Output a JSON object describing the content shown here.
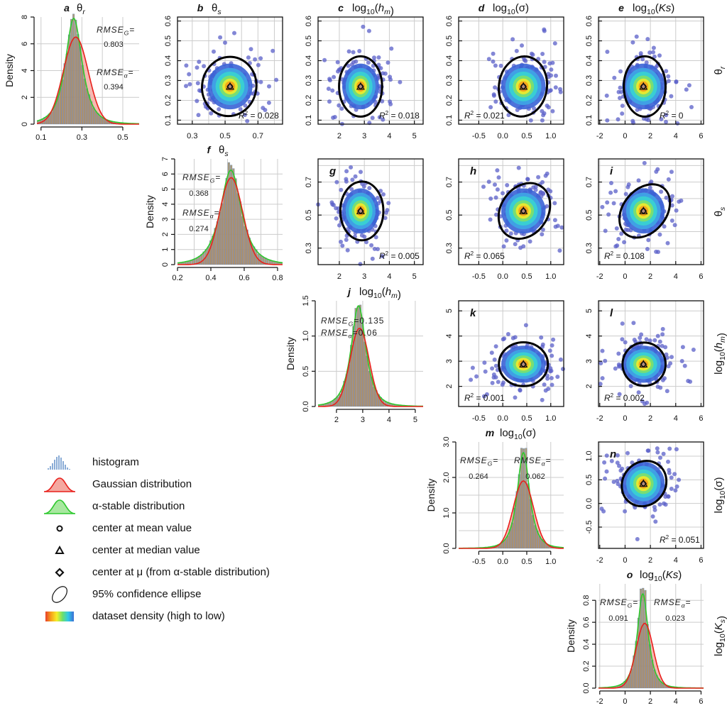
{
  "figure": {
    "description": "Pairwise scatter matrix with marginal histograms of soil hydraulic parameters",
    "row_labels": [
      "θ_r",
      "θ_s",
      "log10(h_m)",
      "log10(σ)",
      "log10(K_s)"
    ],
    "density_axis_label": "Density"
  },
  "legend": {
    "items": [
      {
        "icon": "histogram-icon",
        "label": "histogram"
      },
      {
        "icon": "gaussian-curve-icon",
        "label": "Gaussian distribution"
      },
      {
        "icon": "alpha-stable-curve-icon",
        "label": "α-stable distribution"
      },
      {
        "icon": "circle-marker-icon",
        "label": "center at mean value"
      },
      {
        "icon": "triangle-marker-icon",
        "label": "center at median value"
      },
      {
        "icon": "diamond-marker-icon",
        "label": "center at μ (from α-stable distribution)"
      },
      {
        "icon": "ellipse-icon",
        "label": "95% confidence ellipse"
      },
      {
        "icon": "density-colorbar-icon",
        "label": "dataset density (high to low)"
      }
    ]
  },
  "colors": {
    "histogram": "#4a7fc0",
    "hist_fill": "#a08a60",
    "gaussian": "#e8201c",
    "gaussian_fill": "#f4a8a0",
    "alpha_stable": "#2ec82e",
    "points": "#5a5fc8",
    "ellipse": "#000000",
    "grid": "#cccccc"
  },
  "chart_data": [
    {
      "panel": "a",
      "type": "histogram",
      "title_letter": "a",
      "title_var": "θr",
      "row": 0,
      "col": 0,
      "xlim": [
        0.08,
        0.58
      ],
      "xticks": [
        0.1,
        0.3,
        0.5
      ],
      "xgrid": [
        0.1,
        0.2,
        0.3,
        0.4,
        0.5
      ],
      "ylim": [
        0,
        8
      ],
      "yticks": [
        0,
        2,
        4,
        6,
        8
      ],
      "ytick_labels": [
        "0",
        "2",
        "4",
        "6",
        "8"
      ],
      "ylabel": "Density",
      "gaussian": {
        "mean": 0.27,
        "sd": 0.061,
        "peak": 6.5
      },
      "alpha_stable": {
        "mu": 0.26,
        "scale": 0.038,
        "peak": 7.9
      },
      "hist_peak": 8.3,
      "annotations": [
        {
          "text": "RMSE_G=",
          "value": "0.803"
        },
        {
          "text": "RMSE_α=",
          "value": "0.394"
        }
      ],
      "annot_layout": "stacked-right"
    },
    {
      "panel": "b",
      "type": "scatter",
      "title_letter": "b",
      "title_var": "θs",
      "row": 0,
      "col": 1,
      "xlim": [
        0.21,
        0.85
      ],
      "xticks": [
        0.3,
        0.5,
        0.7
      ],
      "xgrid": [
        0.3,
        0.4,
        0.5,
        0.6,
        0.7,
        0.8
      ],
      "ylim": [
        0.08,
        0.62
      ],
      "yticks": [
        0.1,
        0.2,
        0.3,
        0.4,
        0.5,
        0.6
      ],
      "ytick_labels": [
        "0.1",
        "0.2",
        "0.3",
        "0.4",
        "0.5",
        "0.6"
      ],
      "center": [
        0.53,
        0.27
      ],
      "spread": [
        0.065,
        0.055
      ],
      "ellipse": {
        "cx": 0.525,
        "cy": 0.27,
        "rx": 0.165,
        "ry": 0.15,
        "angle": 10
      },
      "r2": "0.028",
      "r2_pos": "bottom-right"
    },
    {
      "panel": "c",
      "type": "scatter",
      "title_letter": "c",
      "title_var": "log10(hm)",
      "row": 0,
      "col": 2,
      "xlim": [
        1.15,
        5.35
      ],
      "xticks": [
        2,
        3,
        4,
        5
      ],
      "xgrid": [
        2,
        3,
        4,
        5
      ],
      "ylim": [
        0.08,
        0.62
      ],
      "yticks": [
        0.1,
        0.2,
        0.3,
        0.4,
        0.5,
        0.6
      ],
      "ytick_labels": [
        "0.1",
        "0.2",
        "0.3",
        "0.4",
        "0.5",
        "0.6"
      ],
      "center": [
        2.85,
        0.27
      ],
      "spread": [
        0.35,
        0.055
      ],
      "ellipse": {
        "cx": 2.85,
        "cy": 0.27,
        "rx": 0.86,
        "ry": 0.152,
        "angle": 0
      },
      "r2": "0.018",
      "r2_pos": "bottom-right"
    },
    {
      "panel": "d",
      "type": "scatter",
      "title_letter": "d",
      "title_var": "log10(σ)",
      "row": 0,
      "col": 3,
      "xlim": [
        -0.92,
        1.27
      ],
      "xticks": [
        -0.5,
        0.0,
        0.5,
        1.0
      ],
      "xtick_labels": [
        "-0.5",
        "0.0",
        "0.5",
        "1.0"
      ],
      "xgrid": [
        -0.5,
        0,
        0.5,
        1.0
      ],
      "ylim": [
        0.08,
        0.62
      ],
      "yticks": [
        0.1,
        0.2,
        0.3,
        0.4,
        0.5,
        0.6
      ],
      "ytick_labels": [
        "0.1",
        "0.2",
        "0.3",
        "0.4",
        "0.5",
        "0.6"
      ],
      "center": [
        0.43,
        0.27
      ],
      "spread": [
        0.22,
        0.055
      ],
      "ellipse": {
        "cx": 0.42,
        "cy": 0.27,
        "rx": 0.5,
        "ry": 0.152,
        "angle": 8
      },
      "r2": "0.021",
      "r2_pos": "bottom-left"
    },
    {
      "panel": "e",
      "type": "scatter",
      "title_letter": "e",
      "title_var": "log10(Ks)",
      "row": 0,
      "col": 4,
      "xlim": [
        -2.1,
        6.2
      ],
      "xticks": [
        -2,
        0,
        2,
        4,
        6
      ],
      "xgrid": [
        -2,
        0,
        2,
        4,
        6
      ],
      "ylim": [
        0.08,
        0.62
      ],
      "yticks": [
        0.1,
        0.2,
        0.3,
        0.4,
        0.5,
        0.6
      ],
      "ytick_labels": [
        "0.1",
        "0.2",
        "0.3",
        "0.4",
        "0.5",
        "0.6"
      ],
      "center": [
        1.45,
        0.27
      ],
      "spread": [
        0.8,
        0.055
      ],
      "ellipse": {
        "cx": 1.55,
        "cy": 0.27,
        "rx": 1.65,
        "ry": 0.152,
        "angle": 0
      },
      "r2": "0",
      "r2_pos": "bottom-right",
      "right_label": "θr"
    },
    {
      "panel": "f",
      "type": "histogram",
      "title_letter": "f",
      "title_var": "θs",
      "row": 1,
      "col": 1,
      "xlim": [
        0.2,
        0.83
      ],
      "xticks": [
        0.2,
        0.4,
        0.6,
        0.8
      ],
      "xgrid": [
        0.3,
        0.4,
        0.5,
        0.6,
        0.7,
        0.8
      ],
      "ylim": [
        0,
        7
      ],
      "yticks": [
        0,
        1,
        2,
        3,
        4,
        5,
        6,
        7
      ],
      "ytick_labels": [
        "0",
        "1",
        "2",
        "3",
        "4",
        "5",
        "6",
        "7"
      ],
      "ylabel": "Density",
      "gaussian": {
        "mean": 0.522,
        "sd": 0.069,
        "peak": 5.75
      },
      "alpha_stable": {
        "mu": 0.52,
        "scale": 0.058,
        "peak": 6.25
      },
      "hist_peak": 6.8,
      "annotations": [
        {
          "text": "RMSE_G=",
          "value": "0.368"
        },
        {
          "text": "RMSE_α=",
          "value": "0.274"
        }
      ],
      "annot_layout": "stacked-left"
    },
    {
      "panel": "g",
      "type": "scatter",
      "title_letter": "g",
      "row": 1,
      "col": 2,
      "xlim": [
        1.15,
        5.35
      ],
      "xticks": [
        2,
        3,
        4,
        5
      ],
      "xgrid": [
        2,
        3,
        4,
        5
      ],
      "ylim": [
        0.2,
        0.84
      ],
      "yticks": [
        0.3,
        0.5,
        0.7
      ],
      "ytick_labels": [
        "0.3",
        "0.5",
        "0.7"
      ],
      "ygrid": [
        0.3,
        0.4,
        0.5,
        0.6,
        0.7,
        0.8
      ],
      "center": [
        2.85,
        0.525
      ],
      "spread": [
        0.35,
        0.065
      ],
      "ellipse": {
        "cx": 2.9,
        "cy": 0.525,
        "rx": 0.86,
        "ry": 0.178,
        "angle": 0
      },
      "r2": "0.005",
      "r2_pos": "bottom-right"
    },
    {
      "panel": "h",
      "type": "scatter",
      "title_letter": "h",
      "row": 1,
      "col": 3,
      "xlim": [
        -0.92,
        1.27
      ],
      "xticks": [
        -0.5,
        0.0,
        0.5,
        1.0
      ],
      "xtick_labels": [
        "-0.5",
        "0.0",
        "0.5",
        "1.0"
      ],
      "xgrid": [
        -0.5,
        0,
        0.5,
        1.0
      ],
      "ylim": [
        0.2,
        0.84
      ],
      "yticks": [
        0.3,
        0.5,
        0.7
      ],
      "ytick_labels": [
        "0.3",
        "0.5",
        "0.7"
      ],
      "ygrid": [
        0.3,
        0.4,
        0.5,
        0.6,
        0.7,
        0.8
      ],
      "center": [
        0.43,
        0.525
      ],
      "spread": [
        0.22,
        0.065
      ],
      "ellipse": {
        "cx": 0.45,
        "cy": 0.525,
        "rx": 0.49,
        "ry": 0.18,
        "angle": 35
      },
      "r2": "0.065",
      "r2_pos": "bottom-left"
    },
    {
      "panel": "i",
      "type": "scatter",
      "title_letter": "i",
      "row": 1,
      "col": 4,
      "xlim": [
        -2.1,
        6.2
      ],
      "xticks": [
        -2,
        0,
        2,
        4,
        6
      ],
      "xgrid": [
        -2,
        0,
        2,
        4,
        6
      ],
      "ylim": [
        0.2,
        0.84
      ],
      "yticks": [
        0.3,
        0.5,
        0.7
      ],
      "ytick_labels": [
        "0.3",
        "0.5",
        "0.7"
      ],
      "ygrid": [
        0.3,
        0.4,
        0.5,
        0.6,
        0.7,
        0.8
      ],
      "center": [
        1.45,
        0.525
      ],
      "spread": [
        0.8,
        0.065
      ],
      "ellipse": {
        "cx": 1.55,
        "cy": 0.525,
        "rx": 1.7,
        "ry": 0.18,
        "angle": 40
      },
      "r2": "0.108",
      "r2_pos": "bottom-left",
      "right_label": "θs"
    },
    {
      "panel": "j",
      "type": "histogram",
      "title_letter": "j",
      "title_var": "log10(hm)",
      "row": 2,
      "col": 2,
      "xlim": [
        1.3,
        5.3
      ],
      "xticks": [
        2,
        3,
        4,
        5
      ],
      "xgrid": [
        2,
        3,
        4,
        5
      ],
      "ylim": [
        0,
        1.5
      ],
      "yticks": [
        0.0,
        0.5,
        1.0,
        1.5
      ],
      "ytick_labels": [
        "0.0",
        "0.5",
        "1.0",
        "1.5"
      ],
      "ylabel": "Density",
      "gaussian": {
        "mean": 2.88,
        "sd": 0.36,
        "peak": 1.11
      },
      "alpha_stable": {
        "mu": 2.84,
        "scale": 0.26,
        "peak": 1.43
      },
      "hist_peak": 1.5,
      "annotations": [
        {
          "text": "RMSE_G=",
          "value": "0.135"
        },
        {
          "text": "RMSE_α=",
          "value": "0.06"
        }
      ],
      "annot_layout": "inline-left"
    },
    {
      "panel": "k",
      "type": "scatter",
      "title_letter": "k",
      "row": 2,
      "col": 3,
      "xlim": [
        -0.92,
        1.27
      ],
      "xticks": [
        -0.5,
        0.0,
        0.5,
        1.0
      ],
      "xtick_labels": [
        "-0.5",
        "0.0",
        "0.5",
        "1.0"
      ],
      "xgrid": [
        -0.5,
        0,
        0.5,
        1.0
      ],
      "ylim": [
        1.2,
        5.4
      ],
      "yticks": [
        2,
        3,
        4,
        5
      ],
      "ytick_labels": [
        "2",
        "3",
        "4",
        "5"
      ],
      "ygrid": [
        2,
        3,
        4,
        5
      ],
      "center": [
        0.43,
        2.88
      ],
      "spread": [
        0.22,
        0.35
      ],
      "ellipse": {
        "cx": 0.43,
        "cy": 2.88,
        "rx": 0.51,
        "ry": 0.87,
        "angle": 0
      },
      "r2": "0.001",
      "r2_pos": "bottom-left"
    },
    {
      "panel": "l",
      "type": "scatter",
      "title_letter": "l",
      "row": 2,
      "col": 4,
      "xlim": [
        -2.1,
        6.2
      ],
      "xticks": [
        -2,
        0,
        2,
        4,
        6
      ],
      "xgrid": [
        -2,
        0,
        2,
        4,
        6
      ],
      "ylim": [
        1.2,
        5.4
      ],
      "yticks": [
        2,
        3,
        4,
        5
      ],
      "ytick_labels": [
        "2",
        "3",
        "4",
        "5"
      ],
      "ygrid": [
        2,
        3,
        4,
        5
      ],
      "center": [
        1.45,
        2.88
      ],
      "spread": [
        0.8,
        0.35
      ],
      "ellipse": {
        "cx": 1.5,
        "cy": 2.88,
        "rx": 1.7,
        "ry": 0.86,
        "angle": 0
      },
      "r2": "0.002",
      "r2_pos": "bottom-left",
      "right_label": "log10(hm)"
    },
    {
      "panel": "m",
      "type": "histogram",
      "title_letter": "m",
      "title_var": "log10(σ)",
      "row": 3,
      "col": 3,
      "xlim": [
        -0.92,
        1.27
      ],
      "xticks": [
        -0.5,
        0.0,
        0.5,
        1.0
      ],
      "xtick_labels": [
        "-0.5",
        "0.0",
        "0.5",
        "1.0"
      ],
      "xgrid": [
        -0.5,
        0,
        0.5,
        1.0
      ],
      "ylim": [
        0,
        3.0
      ],
      "yticks": [
        0.0,
        1.0,
        2.0,
        3.0
      ],
      "ytick_labels": [
        "0.0",
        "1.0",
        "2.0",
        "3.0"
      ],
      "ygrid": [
        0.5,
        1.0,
        1.5,
        2.0,
        2.5,
        3.0
      ],
      "ylabel": "Density",
      "gaussian": {
        "mean": 0.43,
        "sd": 0.21,
        "peak": 1.9
      },
      "alpha_stable": {
        "mu": 0.43,
        "scale": 0.12,
        "peak": 2.7
      },
      "hist_peak": 2.9,
      "annotations": [
        {
          "text": "RMSE_G=",
          "value": "0.264"
        },
        {
          "text": "RMSE_α=",
          "value": "0.062"
        }
      ],
      "annot_layout": "side-by-side"
    },
    {
      "panel": "n",
      "type": "scatter",
      "title_letter": "n",
      "row": 3,
      "col": 4,
      "xlim": [
        -2.1,
        6.2
      ],
      "xticks": [
        -2,
        0,
        2,
        4,
        6
      ],
      "xgrid": [
        -2,
        0,
        2,
        4,
        6
      ],
      "ylim": [
        -0.95,
        1.3
      ],
      "yticks": [
        -0.5,
        0.0,
        0.5,
        1.0
      ],
      "ytick_labels": [
        "-0.5",
        "0.0",
        "0.5",
        "1.0"
      ],
      "ygrid": [
        -0.5,
        0,
        0.5,
        1.0
      ],
      "center": [
        1.45,
        0.42
      ],
      "spread": [
        0.8,
        0.22
      ],
      "ellipse": {
        "cx": 1.5,
        "cy": 0.42,
        "rx": 1.68,
        "ry": 0.5,
        "angle": 40
      },
      "r2": "0.051",
      "r2_pos": "bottom-right",
      "right_label": "log10(σ)"
    },
    {
      "panel": "o",
      "type": "histogram",
      "title_letter": "o",
      "title_var": "log10(Ks)",
      "row": 4,
      "col": 4,
      "xlim": [
        -2.1,
        6.2
      ],
      "xticks": [
        -2,
        0,
        2,
        4,
        6
      ],
      "xgrid": [
        -2,
        0,
        2,
        4,
        6
      ],
      "ylim": [
        0,
        0.95
      ],
      "yticks": [
        0.0,
        0.2,
        0.4,
        0.6,
        0.8
      ],
      "ytick_labels": [
        "0.0",
        "0.2",
        "0.4",
        "0.6",
        "0.8"
      ],
      "ylabel": "Density",
      "gaussian": {
        "mean": 1.55,
        "sd": 0.68,
        "peak": 0.59
      },
      "alpha_stable": {
        "mu": 1.4,
        "scale": 0.4,
        "peak": 0.86
      },
      "hist_peak": 0.93,
      "annotations": [
        {
          "text": "RMSE_G=",
          "value": "0.091"
        },
        {
          "text": "RMSE_α=",
          "value": "0.023"
        }
      ],
      "annot_layout": "side-by-side",
      "right_label": "log10(Ks)"
    }
  ]
}
